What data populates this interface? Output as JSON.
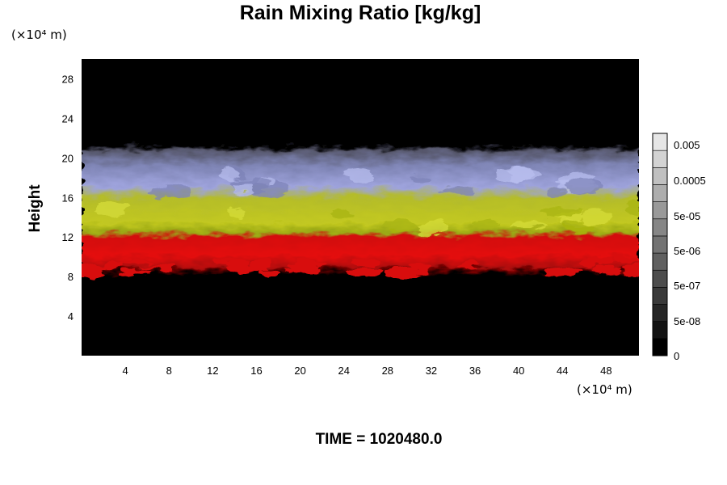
{
  "chart_data": {
    "type": "heatmap",
    "title": "Rain Mixing Ratio [kg/kg]",
    "ylabel": "Height",
    "x_unit": "(×10⁴ m)",
    "y_unit": "(×10⁴ m)",
    "xlim": [
      0,
      51
    ],
    "ylim": [
      0,
      30
    ],
    "x_ticks": [
      4,
      8,
      12,
      16,
      20,
      24,
      28,
      32,
      36,
      40,
      44,
      48
    ],
    "y_ticks": [
      4,
      8,
      12,
      16,
      20,
      24,
      28
    ],
    "colorbar": {
      "levels": 13,
      "labels": [
        "0.005",
        "0.0005",
        "5e-05",
        "5e-06",
        "5e-07",
        "5e-08",
        "0"
      ]
    },
    "bands": [
      {
        "color": "#e00808",
        "y_range": [
          8,
          12.5
        ]
      },
      {
        "color": "#b8c018",
        "y_range": [
          12.5,
          16
        ]
      },
      {
        "color": "#8f95c8",
        "y_range": [
          16,
          20.5
        ]
      }
    ],
    "annotation": "TIME = 1020480.0"
  }
}
